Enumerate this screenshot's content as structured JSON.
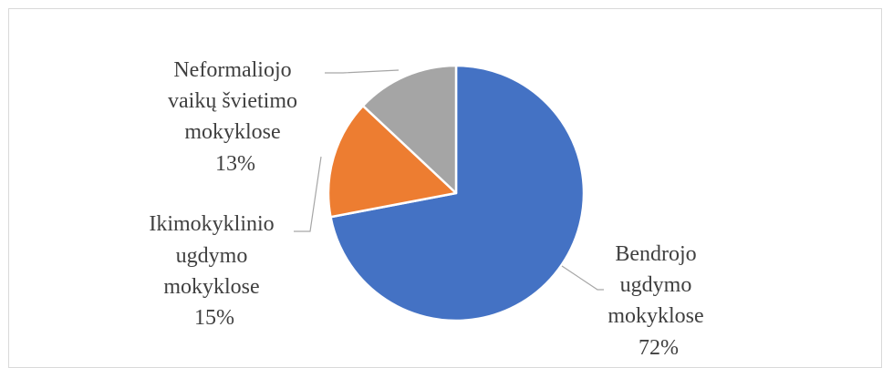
{
  "chart_data": {
    "type": "pie",
    "title": "",
    "slices": [
      {
        "label_lines": [
          "Bendrojo",
          "ugdymo",
          "mokyklose"
        ],
        "percent_label": "72%",
        "value": 72,
        "color": "#4472c4"
      },
      {
        "label_lines": [
          "Ikimokyklinio",
          "ugdymo",
          "mokyklose"
        ],
        "percent_label": "15%",
        "value": 15,
        "color": "#ed7d31"
      },
      {
        "label_lines": [
          "Neformaliojo",
          "vaikų švietimo",
          "mokyklose"
        ],
        "percent_label": "13%",
        "value": 13,
        "color": "#a5a5a5"
      }
    ],
    "legend": "none",
    "data_labels": "outside-with-leader-lines"
  }
}
